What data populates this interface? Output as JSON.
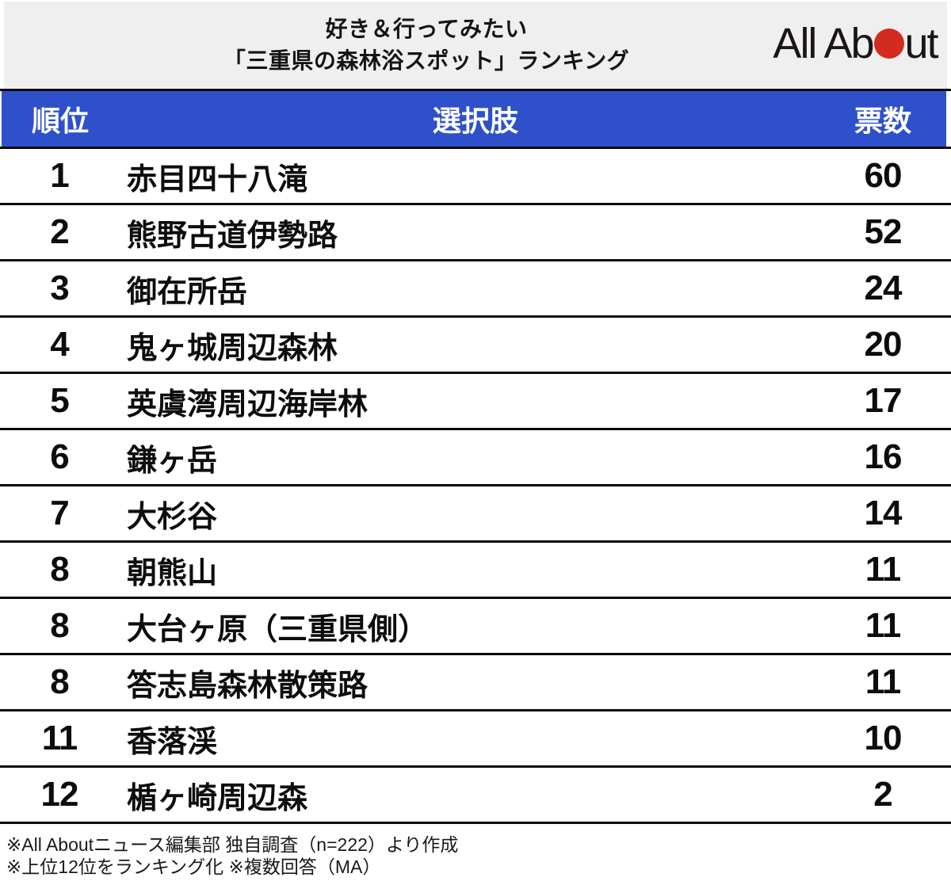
{
  "colors": {
    "header_bg": "#efefef",
    "accent_blue": "#2e51cb",
    "logo_red": "#d32a21",
    "rule_black": "#0a0a0a",
    "row_bg": "#ffffff"
  },
  "header": {
    "title_line1": "好き＆行ってみたい",
    "title_line2": "「三重県の森林浴スポット」ランキング",
    "logo_text_left": "All Ab",
    "logo_text_right": "ut",
    "logo_name": "All About"
  },
  "table": {
    "headers": {
      "rank": "順位",
      "choice": "選択肢",
      "votes": "票数"
    },
    "rows": [
      {
        "rank": "1",
        "choice": "赤目四十八滝",
        "votes": "60"
      },
      {
        "rank": "2",
        "choice": "熊野古道伊勢路",
        "votes": "52"
      },
      {
        "rank": "3",
        "choice": "御在所岳",
        "votes": "24"
      },
      {
        "rank": "4",
        "choice": "鬼ヶ城周辺森林",
        "votes": "20"
      },
      {
        "rank": "5",
        "choice": "英虞湾周辺海岸林",
        "votes": "17"
      },
      {
        "rank": "6",
        "choice": "鎌ヶ岳",
        "votes": "16"
      },
      {
        "rank": "7",
        "choice": "大杉谷",
        "votes": "14"
      },
      {
        "rank": "8",
        "choice": "朝熊山",
        "votes": "11"
      },
      {
        "rank": "8",
        "choice": "大台ヶ原（三重県側）",
        "votes": "11"
      },
      {
        "rank": "8",
        "choice": "答志島森林散策路",
        "votes": "11"
      },
      {
        "rank": "11",
        "choice": "香落渓",
        "votes": "10"
      },
      {
        "rank": "12",
        "choice": "楯ヶ崎周辺森",
        "votes": "2"
      }
    ]
  },
  "footer": {
    "note1": "※All Aboutニュース編集部 独自調査（n=222）より作成",
    "note2": "※上位12位をランキング化 ※複数回答（MA）"
  },
  "chart_data": {
    "type": "table",
    "title": "好き＆行ってみたい「三重県の森林浴スポット」ランキング",
    "columns": [
      "順位",
      "選択肢",
      "票数"
    ],
    "rows": [
      [
        1,
        "赤目四十八滝",
        60
      ],
      [
        2,
        "熊野古道伊勢路",
        52
      ],
      [
        3,
        "御在所岳",
        24
      ],
      [
        4,
        "鬼ヶ城周辺森林",
        20
      ],
      [
        5,
        "英虞湾周辺海岸林",
        17
      ],
      [
        6,
        "鎌ヶ岳",
        16
      ],
      [
        7,
        "大杉谷",
        14
      ],
      [
        8,
        "朝熊山",
        11
      ],
      [
        8,
        "大台ヶ原（三重県側）",
        11
      ],
      [
        8,
        "答志島森林散策路",
        11
      ],
      [
        11,
        "香落渓",
        10
      ],
      [
        12,
        "楯ヶ崎周辺森",
        2
      ]
    ],
    "annotations": [
      "※All Aboutニュース編集部 独自調査（n=222）より作成",
      "※上位12位をランキング化 ※複数回答（MA）"
    ],
    "legend_position": "none",
    "grid": "horizontal-rules"
  }
}
